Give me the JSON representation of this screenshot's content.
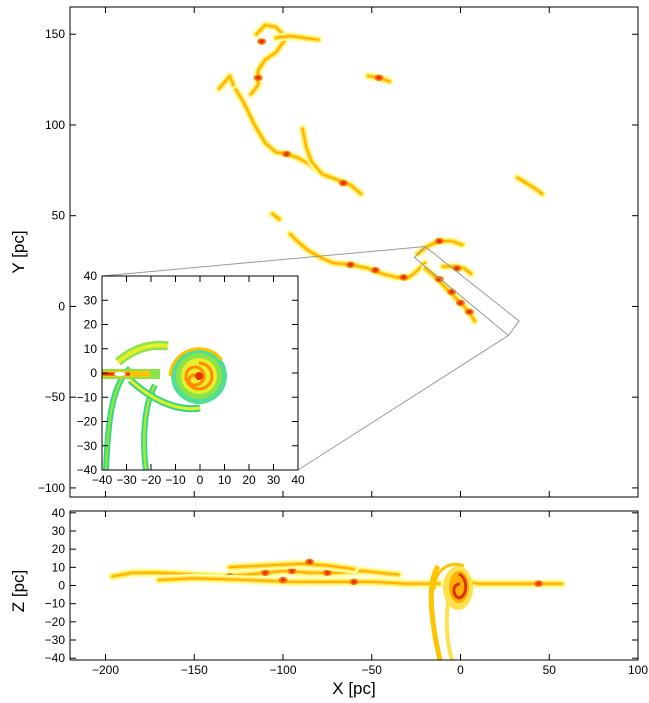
{
  "chart_data": [
    {
      "type": "heatmap",
      "panel": "main-xy",
      "xlim": [
        -220,
        100
      ],
      "ylim": [
        -105,
        165
      ],
      "yticks": [
        -100,
        -50,
        0,
        50,
        100,
        150
      ],
      "ytick_labels": [
        "−100",
        "−50",
        "0",
        "50",
        "100",
        "150"
      ],
      "ylabel": "Y [pc]",
      "colormap": [
        "#ffffb0",
        "#ffe14d",
        "#ffb000",
        "#ff7a00",
        "#e03000",
        "#c00000"
      ],
      "filaments": [
        {
          "points": [
            [
              -128,
              122
            ],
            [
              -122,
              112
            ],
            [
              -116,
              100
            ],
            [
              -110,
              90
            ],
            [
              -104,
              85
            ],
            [
              -98,
              84
            ],
            [
              -92,
              82
            ],
            [
              -86,
              79
            ],
            [
              -82,
              76
            ]
          ],
          "peak": [
            [
              -98,
              84
            ]
          ]
        },
        {
          "points": [
            [
              -136,
              120
            ],
            [
              -130,
              127
            ],
            [
              -128,
              122
            ]
          ],
          "peak": []
        },
        {
          "points": [
            [
              -115,
              150
            ],
            [
              -110,
              155
            ],
            [
              -104,
              154
            ],
            [
              -98,
              148
            ],
            [
              -104,
              140
            ],
            [
              -110,
              136
            ],
            [
              -114,
              130
            ],
            [
              -114,
              122
            ],
            [
              -118,
              117
            ]
          ],
          "peak": [
            [
              -112,
              146
            ],
            [
              -114,
              126
            ]
          ]
        },
        {
          "points": [
            [
              -104,
              148
            ],
            [
              -96,
              149
            ],
            [
              -88,
              148
            ],
            [
              -80,
              147
            ]
          ],
          "peak": []
        },
        {
          "points": [
            [
              -89,
              98
            ],
            [
              -87,
              88
            ],
            [
              -84,
              80
            ],
            [
              -78,
              73
            ],
            [
              -70,
              70
            ],
            [
              -62,
              67
            ],
            [
              -56,
              62
            ]
          ],
          "peak": [
            [
              -66,
              68
            ]
          ]
        },
        {
          "points": [
            [
              -52,
              127
            ],
            [
              -46,
              126
            ],
            [
              -40,
              124
            ]
          ],
          "peak": [
            [
              -46,
              126
            ]
          ]
        },
        {
          "points": [
            [
              32,
              71
            ],
            [
              37,
              68
            ],
            [
              42,
              65
            ],
            [
              46,
              62
            ]
          ],
          "peak": []
        },
        {
          "points": [
            [
              -106,
              51
            ],
            [
              -102,
              48
            ]
          ],
          "peak": []
        },
        {
          "points": [
            [
              -96,
              40
            ],
            [
              -92,
              36
            ],
            [
              -86,
              31
            ],
            [
              -79,
              27
            ],
            [
              -72,
              24
            ],
            [
              -62,
              23
            ],
            [
              -52,
              21
            ],
            [
              -44,
              18
            ],
            [
              -36,
              16
            ],
            [
              -29,
              16
            ],
            [
              -24,
              20
            ],
            [
              -20,
              24
            ]
          ],
          "peak": [
            [
              -62,
              23
            ],
            [
              -48,
              20
            ],
            [
              -32,
              16
            ]
          ]
        },
        {
          "points": [
            [
              -24,
              29
            ],
            [
              -19,
              33
            ],
            [
              -12,
              36
            ],
            [
              -5,
              36
            ],
            [
              1,
              34
            ]
          ],
          "peak": [
            [
              -12,
              36
            ]
          ]
        },
        {
          "points": [
            [
              -20,
              21
            ],
            [
              -14,
              16
            ],
            [
              -8,
              10
            ],
            [
              -3,
              5
            ],
            [
              2,
              0
            ],
            [
              6,
              -5
            ],
            [
              8,
              -8
            ]
          ],
          "peak": [
            [
              -12,
              15
            ],
            [
              -5,
              8
            ],
            [
              0,
              2
            ],
            [
              5,
              -3
            ]
          ]
        },
        {
          "points": [
            [
              -10,
              22
            ],
            [
              -4,
              22
            ],
            [
              2,
              21
            ],
            [
              6,
              18
            ]
          ],
          "peak": [
            [
              -2,
              21
            ]
          ]
        }
      ],
      "zoom_box_corners": [
        [
          -20,
          33
        ],
        [
          33,
          -8
        ],
        [
          27,
          -16
        ],
        [
          -26,
          27
        ]
      ]
    },
    {
      "type": "heatmap",
      "panel": "inset-zoom",
      "xlim": [
        -40,
        40
      ],
      "ylim": [
        -40,
        40
      ],
      "xticks": [
        -40,
        -30,
        -20,
        -10,
        0,
        10,
        20,
        30,
        40
      ],
      "xtick_labels": [
        "−40",
        "−30",
        "−20",
        "−10",
        "0",
        "10",
        "20",
        "30",
        "40"
      ],
      "yticks": [
        -40,
        -30,
        -20,
        -10,
        0,
        10,
        20,
        30,
        40
      ],
      "ytick_labels": [
        "−40",
        "−30",
        "−20",
        "−10",
        "0",
        "10",
        "20",
        "30",
        "40"
      ],
      "colormap": [
        "#30d880",
        "#8be34a",
        "#e8ef2a",
        "#ffc400",
        "#ff8a00",
        "#e83000"
      ]
    },
    {
      "type": "heatmap",
      "panel": "bottom-xz",
      "xlim": [
        -220,
        100
      ],
      "ylim": [
        -41,
        41
      ],
      "xticks": [
        -200,
        -150,
        -100,
        -50,
        0,
        50,
        100
      ],
      "xtick_labels": [
        "−200",
        "−150",
        "−100",
        "−50",
        "0",
        "50",
        "100"
      ],
      "yticks": [
        -40,
        -30,
        -20,
        -10,
        0,
        10,
        20,
        30,
        40
      ],
      "ytick_labels": [
        "−40",
        "−30",
        "−20",
        "−10",
        "0",
        "10",
        "20",
        "30",
        "40"
      ],
      "xlabel": "X [pc]",
      "ylabel": "Z [pc]",
      "filaments": [
        {
          "points": [
            [
              -196,
              5
            ],
            [
              -185,
              7
            ],
            [
              -170,
              7
            ],
            [
              -150,
              6
            ],
            [
              -135,
              5
            ],
            [
              -120,
              6
            ],
            [
              -100,
              8
            ],
            [
              -85,
              7
            ],
            [
              -70,
              7
            ],
            [
              -55,
              8
            ],
            [
              -45,
              7
            ],
            [
              -35,
              6
            ]
          ],
          "peak": [
            [
              -130,
              5
            ],
            [
              -110,
              7
            ],
            [
              -95,
              8
            ],
            [
              -75,
              7
            ]
          ]
        },
        {
          "points": [
            [
              -170,
              3
            ],
            [
              -150,
              4
            ],
            [
              -120,
              3
            ],
            [
              -95,
              2
            ],
            [
              -70,
              2
            ],
            [
              -50,
              2
            ],
            [
              -30,
              1
            ],
            [
              -12,
              1
            ]
          ],
          "peak": [
            [
              -100,
              3
            ],
            [
              -60,
              2
            ]
          ]
        },
        {
          "points": [
            [
              -130,
              10
            ],
            [
              -110,
              11
            ],
            [
              -90,
              12
            ],
            [
              -75,
              11
            ],
            [
              -60,
              9
            ]
          ],
          "peak": [
            [
              -85,
              13
            ]
          ]
        },
        {
          "points": [
            [
              -8,
              2
            ],
            [
              -2,
              3
            ],
            [
              10,
              1
            ],
            [
              20,
              1
            ],
            [
              35,
              1
            ],
            [
              50,
              1
            ],
            [
              57,
              1
            ]
          ],
          "peak": [
            [
              44,
              1
            ]
          ]
        }
      ]
    }
  ]
}
